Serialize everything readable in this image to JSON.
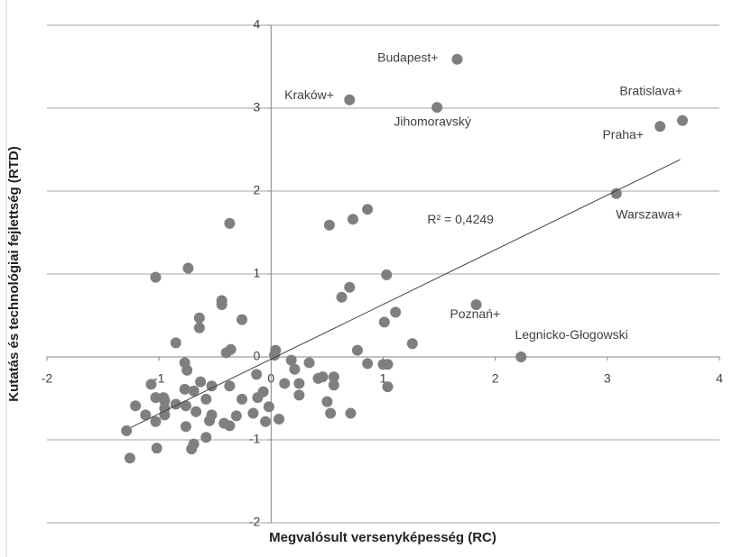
{
  "chart_data": {
    "type": "scatter",
    "x_label": "Megvalósult versenyképesség (RC)",
    "y_label": "Kutatás és technológiai fejlettség (RTD)",
    "xlim": [
      -2,
      4
    ],
    "xticks": [
      -2,
      -1,
      0,
      1,
      2,
      3,
      4
    ],
    "ylim": [
      -2,
      4
    ],
    "yticks": [
      -2,
      -1,
      0,
      1,
      2,
      3,
      4
    ],
    "grid": true,
    "series": [
      {
        "color": "#7f7f7f",
        "x": [
          1.66,
          0.7,
          1.48,
          3.67,
          3.47,
          3.08,
          1.83,
          2.23,
          -0.37,
          -0.74,
          -1.03,
          -0.44,
          -0.44,
          -0.64,
          -0.26,
          -0.64,
          -0.85,
          -0.36,
          -0.4,
          0.04,
          0.03,
          -0.77,
          -0.75,
          -1.07,
          -0.63,
          -0.53,
          -0.77,
          -0.69,
          -0.37,
          -0.13,
          -0.07,
          -0.02,
          -0.12,
          -0.26,
          -1.21,
          -1.03,
          -0.96,
          -0.95,
          -0.95,
          -0.95,
          -1.12,
          -1.03,
          -0.85,
          -0.76,
          -0.58,
          -0.67,
          -0.53,
          -0.55,
          -0.76,
          -0.31,
          -0.42,
          -0.37,
          -0.16,
          -0.05,
          0.07,
          -0.58,
          -0.69,
          -0.71,
          -1.02,
          -1.29,
          -1.26,
          0.18,
          0.21,
          0.12,
          0.25,
          0.25,
          0.34,
          0.42,
          0.46,
          0.56,
          0.56,
          0.5,
          0.53,
          0.71,
          0.77,
          0.86,
          1.0,
          1.04,
          1.04,
          1.26,
          1.01,
          1.11,
          0.7,
          0.63,
          1.03,
          0.52,
          0.73,
          0.86
        ],
        "values": [
          3.59,
          3.1,
          3.01,
          2.85,
          2.78,
          1.97,
          0.63,
          0.0,
          1.61,
          1.07,
          0.96,
          0.68,
          0.63,
          0.47,
          0.45,
          0.35,
          0.17,
          0.09,
          0.05,
          0.08,
          0.02,
          -0.07,
          -0.16,
          -0.33,
          -0.3,
          -0.35,
          -0.39,
          -0.41,
          -0.35,
          -0.21,
          -0.42,
          -0.6,
          -0.49,
          -0.51,
          -0.59,
          -0.49,
          -0.49,
          -0.53,
          -0.62,
          -0.7,
          -0.7,
          -0.78,
          -0.57,
          -0.59,
          -0.51,
          -0.66,
          -0.7,
          -0.77,
          -0.84,
          -0.71,
          -0.8,
          -0.83,
          -0.68,
          -0.78,
          -0.75,
          -0.97,
          -1.05,
          -1.11,
          -1.1,
          -0.89,
          -1.22,
          -0.04,
          -0.15,
          -0.32,
          -0.32,
          -0.46,
          -0.07,
          -0.26,
          -0.24,
          -0.24,
          -0.34,
          -0.54,
          -0.68,
          -0.68,
          0.08,
          -0.08,
          -0.09,
          -0.09,
          -0.36,
          0.16,
          0.42,
          0.54,
          0.84,
          0.72,
          0.99,
          1.59,
          1.66,
          1.78
        ]
      }
    ],
    "trendline": {
      "x": [
        -1.25,
        3.65
      ],
      "y": [
        -0.85,
        2.38
      ]
    },
    "annotations": [
      {
        "text": "Budapest+",
        "x": 1.22,
        "y": 3.6
      },
      {
        "text": "Kraków+",
        "x": 0.34,
        "y": 3.15
      },
      {
        "text": "Jihomoravský",
        "x": 1.44,
        "y": 2.83
      },
      {
        "text": "Bratislava+",
        "x": 3.39,
        "y": 3.2
      },
      {
        "text": "Praha+",
        "x": 3.14,
        "y": 2.67
      },
      {
        "text": "Warszawa+",
        "x": 3.37,
        "y": 1.71
      },
      {
        "text": "Poznań+",
        "x": 1.82,
        "y": 0.51
      },
      {
        "text": "Legnicko-Głogowski",
        "x": 2.68,
        "y": 0.26
      },
      {
        "text": "R² = 0,4249",
        "x": 1.69,
        "y": 1.65
      }
    ]
  }
}
